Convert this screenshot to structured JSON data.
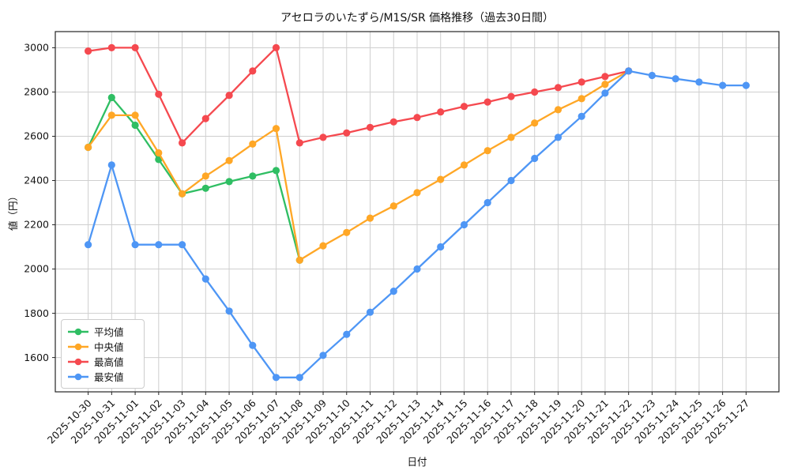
{
  "chart_data": {
    "type": "line",
    "title": "アセロラのいたずら/M1S/SR 価格推移（過去30日間）",
    "xlabel": "日付",
    "ylabel": "値（円）",
    "x": [
      "2025-10-30",
      "2025-10-31",
      "2025-11-01",
      "2025-11-02",
      "2025-11-03",
      "2025-11-04",
      "2025-11-05",
      "2025-11-06",
      "2025-11-07",
      "2025-11-08",
      "2025-11-09",
      "2025-11-10",
      "2025-11-11",
      "2025-11-12",
      "2025-11-13",
      "2025-11-14",
      "2025-11-15",
      "2025-11-16",
      "2025-11-17",
      "2025-11-18",
      "2025-11-19",
      "2025-11-20",
      "2025-11-21",
      "2025-11-22",
      "2025-11-23",
      "2025-11-24",
      "2025-11-25",
      "2025-11-26",
      "2025-11-27"
    ],
    "yticks": [
      1600,
      1800,
      2000,
      2200,
      2400,
      2600,
      2800,
      3000
    ],
    "ylim": [
      1445,
      3073
    ],
    "grid": true,
    "legend_position": "lower-left",
    "series": [
      {
        "key": "average",
        "name": "平均値",
        "color": "#2fbe63",
        "values": [
          2550,
          2775,
          2650,
          2495,
          2340,
          2365,
          2395,
          2420,
          2445,
          2040,
          null,
          null,
          null,
          null,
          null,
          null,
          null,
          null,
          null,
          null,
          null,
          null,
          null,
          null,
          null,
          null,
          null,
          null,
          null
        ]
      },
      {
        "key": "median",
        "name": "中央値",
        "color": "#ffa726",
        "values": [
          2550,
          2695,
          2695,
          2525,
          2340,
          2420,
          2490,
          2565,
          2635,
          2040,
          2105,
          2165,
          2230,
          2285,
          2345,
          2405,
          2470,
          2535,
          2595,
          2660,
          2720,
          2770,
          2835,
          2895,
          null,
          null,
          null,
          null,
          null
        ]
      },
      {
        "key": "max",
        "name": "最高値",
        "color": "#f5494f",
        "values": [
          2985,
          3000,
          3000,
          2790,
          2570,
          2680,
          2785,
          2895,
          3000,
          2570,
          2595,
          2615,
          2640,
          2665,
          2685,
          2710,
          2735,
          2755,
          2780,
          2800,
          2820,
          2845,
          2870,
          2895,
          null,
          null,
          null,
          null,
          null
        ]
      },
      {
        "key": "min",
        "name": "最安値",
        "color": "#4e96f5",
        "values": [
          2110,
          2470,
          2110,
          2110,
          2110,
          1955,
          1810,
          1655,
          1510,
          1510,
          1610,
          1705,
          1805,
          1900,
          2000,
          2100,
          2200,
          2300,
          2400,
          2500,
          2595,
          2690,
          2795,
          2895,
          2875,
          2860,
          2845,
          2830,
          2830
        ]
      }
    ]
  }
}
